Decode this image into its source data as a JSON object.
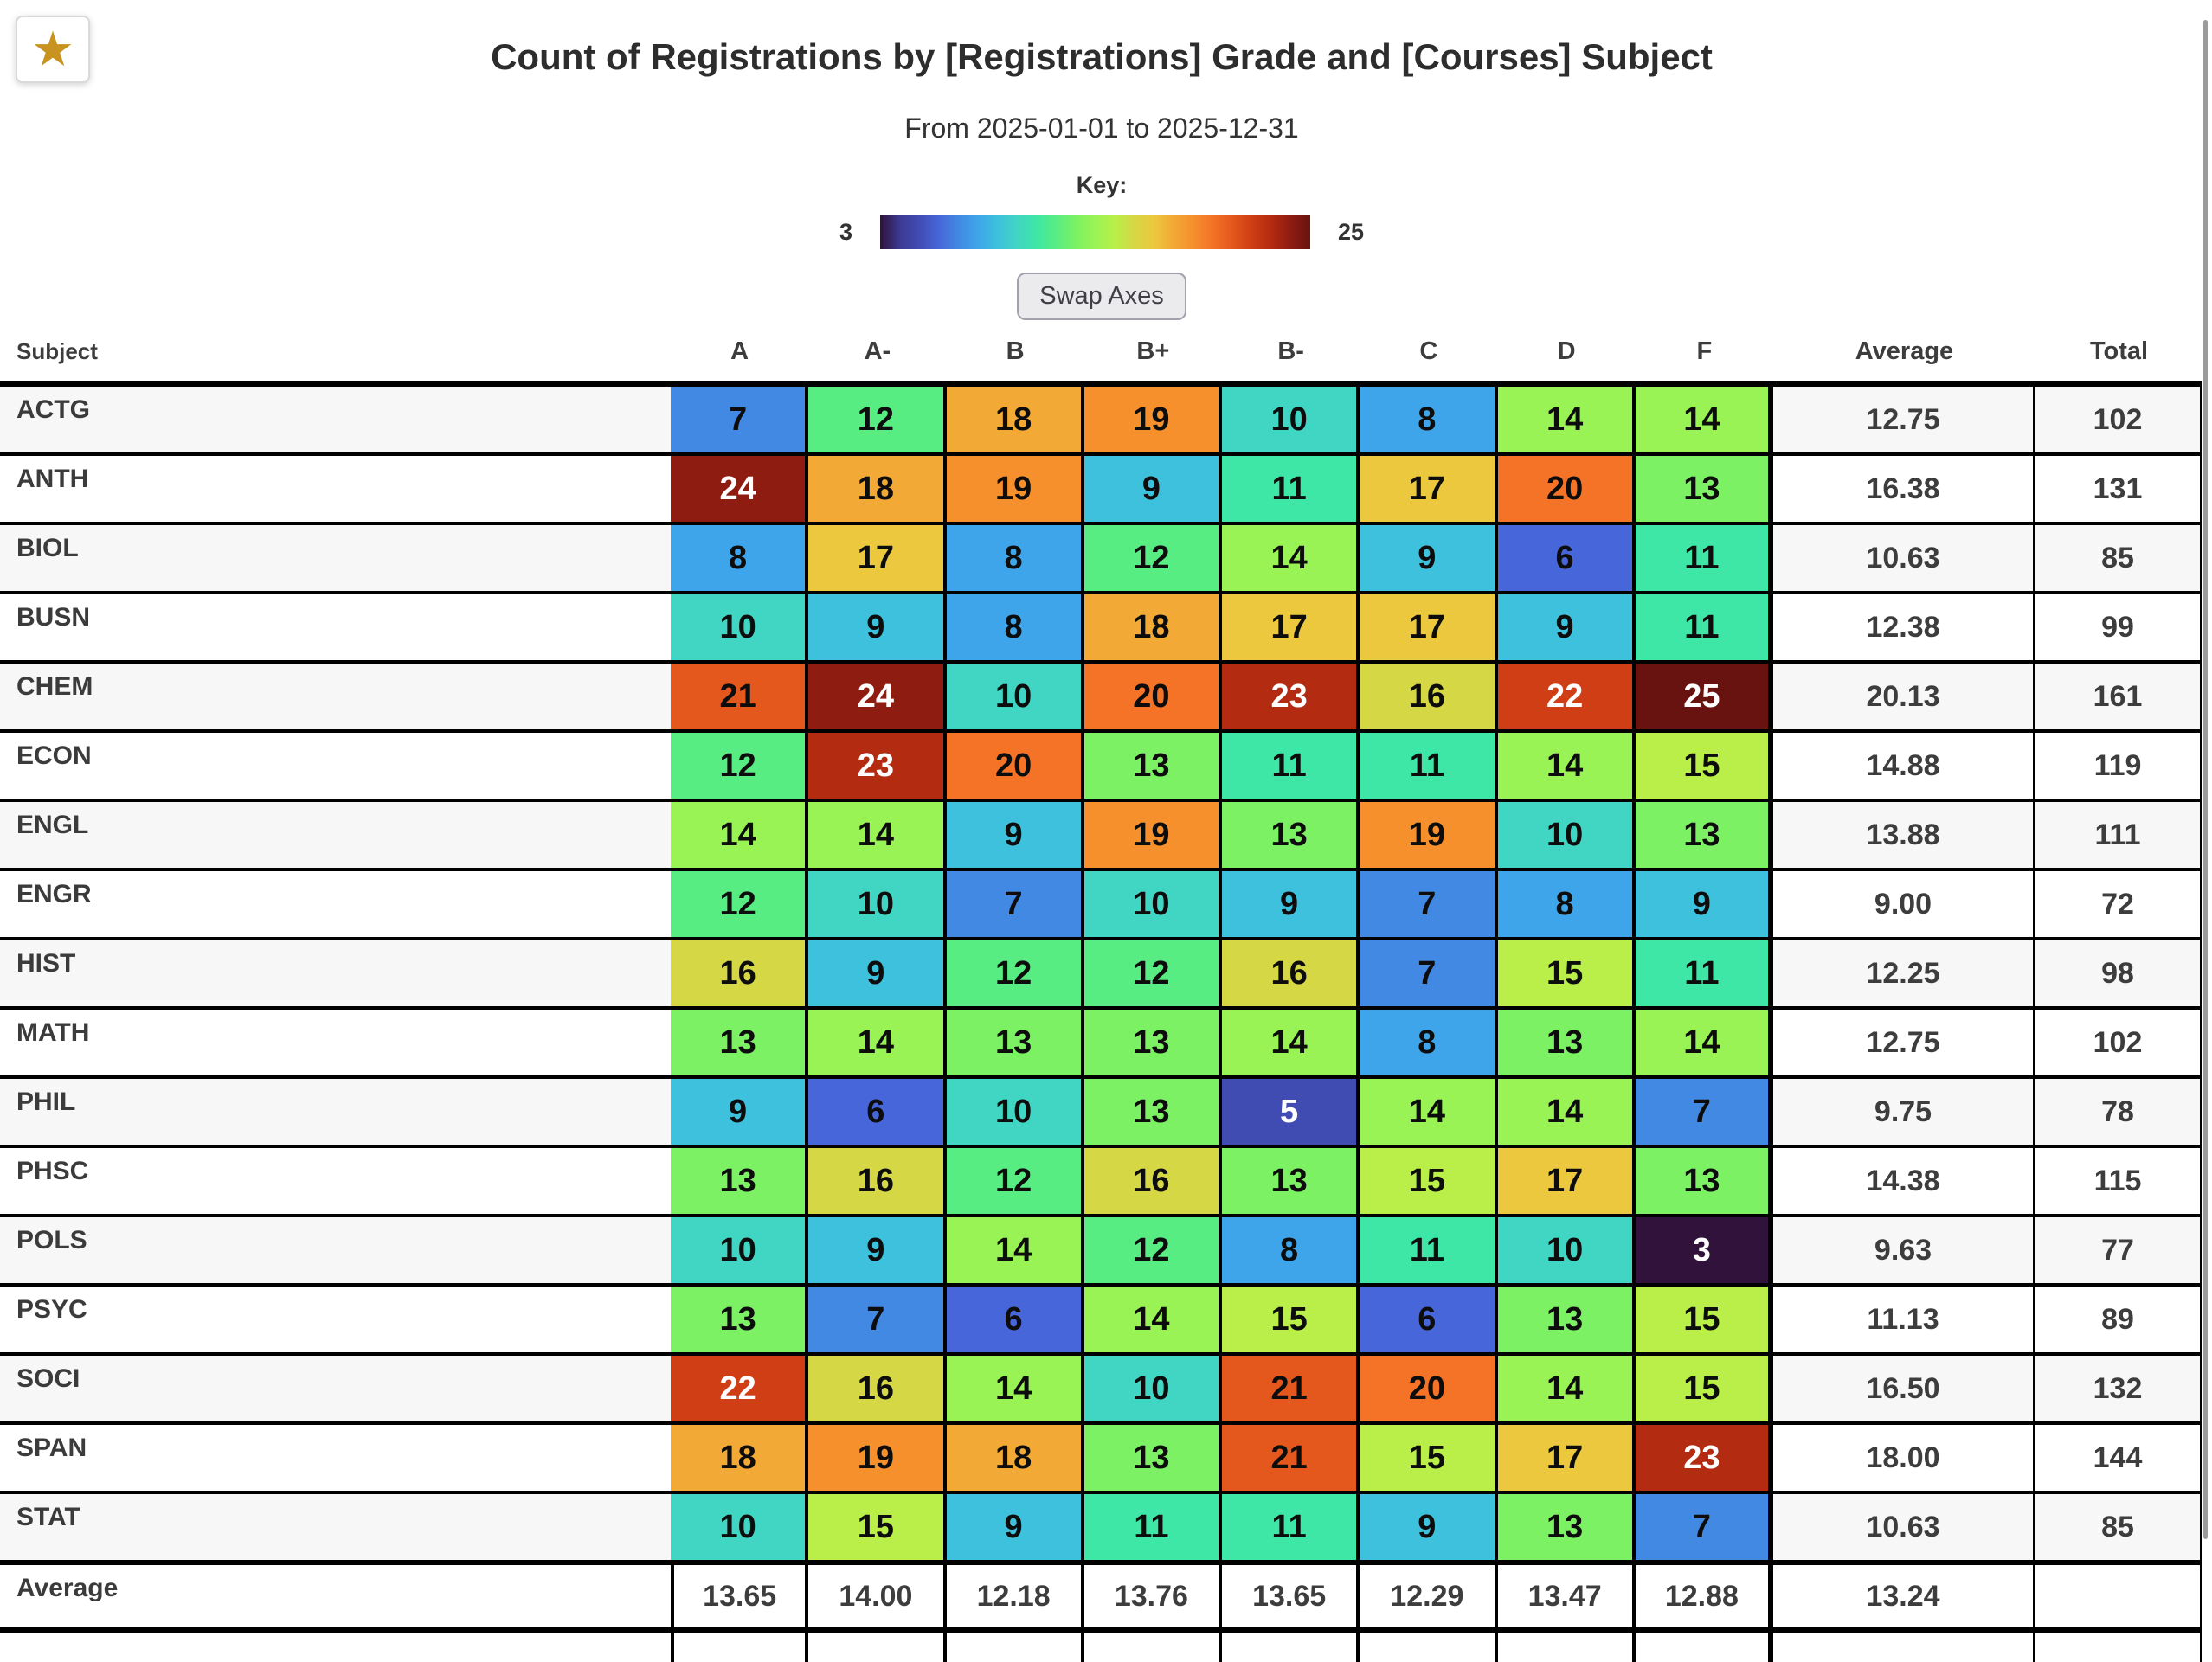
{
  "app": {
    "favorite_icon": "star",
    "title": "Count of Registrations by [Registrations] Grade and [Courses] Subject",
    "subtitle": "From 2025-01-01 to 2025-12-31",
    "key": {
      "label": "Key:",
      "min": "3",
      "max": "25"
    },
    "swap_axes_button": "Swap Axes"
  },
  "heatmap": {
    "scale_min": 3,
    "scale_max": 25,
    "dark_text": "#0d0d0d",
    "light_text": "#ffffff",
    "palette": {
      "3": "#30123b",
      "4": "#3b3a92",
      "5": "#414cb3",
      "6": "#4766d9",
      "7": "#4189e2",
      "8": "#3fa5ea",
      "9": "#3dc1dc",
      "10": "#41d5c3",
      "11": "#3ee7a6",
      "12": "#58ed83",
      "13": "#7bf163",
      "14": "#9af355",
      "15": "#b9ef48",
      "16": "#d6d744",
      "17": "#ecc83e",
      "18": "#f2a936",
      "19": "#f5902d",
      "20": "#f47327",
      "21": "#e4571d",
      "22": "#cf3e14",
      "23": "#b32b10",
      "24": "#8e1c11",
      "25": "#691311"
    },
    "row_stripe_odd": "#f7f7f7",
    "row_stripe_even": "#ffffff"
  },
  "table": {
    "subject_header": "Subject",
    "grade_headers": [
      "A",
      "A-",
      "B",
      "B+",
      "B-",
      "C",
      "D",
      "F"
    ],
    "average_header": "Average",
    "total_header": "Total",
    "rows": [
      {
        "subject": "ACTG",
        "values": [
          7,
          12,
          18,
          19,
          10,
          8,
          14,
          14
        ],
        "average": "12.75",
        "total": "102"
      },
      {
        "subject": "ANTH",
        "values": [
          24,
          18,
          19,
          9,
          11,
          17,
          20,
          13
        ],
        "average": "16.38",
        "total": "131"
      },
      {
        "subject": "BIOL",
        "values": [
          8,
          17,
          8,
          12,
          14,
          9,
          6,
          11
        ],
        "average": "10.63",
        "total": "85"
      },
      {
        "subject": "BUSN",
        "values": [
          10,
          9,
          8,
          18,
          17,
          17,
          9,
          11
        ],
        "average": "12.38",
        "total": "99"
      },
      {
        "subject": "CHEM",
        "values": [
          21,
          24,
          10,
          20,
          23,
          16,
          22,
          25
        ],
        "average": "20.13",
        "total": "161"
      },
      {
        "subject": "ECON",
        "values": [
          12,
          23,
          20,
          13,
          11,
          11,
          14,
          15
        ],
        "average": "14.88",
        "total": "119"
      },
      {
        "subject": "ENGL",
        "values": [
          14,
          14,
          9,
          19,
          13,
          19,
          10,
          13
        ],
        "average": "13.88",
        "total": "111"
      },
      {
        "subject": "ENGR",
        "values": [
          12,
          10,
          7,
          10,
          9,
          7,
          8,
          9
        ],
        "average": "9.00",
        "total": "72"
      },
      {
        "subject": "HIST",
        "values": [
          16,
          9,
          12,
          12,
          16,
          7,
          15,
          11
        ],
        "average": "12.25",
        "total": "98"
      },
      {
        "subject": "MATH",
        "values": [
          13,
          14,
          13,
          13,
          14,
          8,
          13,
          14
        ],
        "average": "12.75",
        "total": "102"
      },
      {
        "subject": "PHIL",
        "values": [
          9,
          6,
          10,
          13,
          5,
          14,
          14,
          7
        ],
        "average": "9.75",
        "total": "78"
      },
      {
        "subject": "PHSC",
        "values": [
          13,
          16,
          12,
          16,
          13,
          15,
          17,
          13
        ],
        "average": "14.38",
        "total": "115"
      },
      {
        "subject": "POLS",
        "values": [
          10,
          9,
          14,
          12,
          8,
          11,
          10,
          3
        ],
        "average": "9.63",
        "total": "77"
      },
      {
        "subject": "PSYC",
        "values": [
          13,
          7,
          6,
          14,
          15,
          6,
          13,
          15
        ],
        "average": "11.13",
        "total": "89"
      },
      {
        "subject": "SOCI",
        "values": [
          22,
          16,
          14,
          10,
          21,
          20,
          14,
          15
        ],
        "average": "16.50",
        "total": "132"
      },
      {
        "subject": "SPAN",
        "values": [
          18,
          19,
          18,
          13,
          21,
          15,
          17,
          23
        ],
        "average": "18.00",
        "total": "144"
      },
      {
        "subject": "STAT",
        "values": [
          10,
          15,
          9,
          11,
          11,
          9,
          13,
          7
        ],
        "average": "10.63",
        "total": "85"
      }
    ],
    "footer": {
      "label": "Average",
      "values": [
        "13.65",
        "14.00",
        "12.18",
        "13.76",
        "13.65",
        "12.29",
        "13.47",
        "12.88"
      ],
      "average": "13.24",
      "total": ""
    }
  }
}
